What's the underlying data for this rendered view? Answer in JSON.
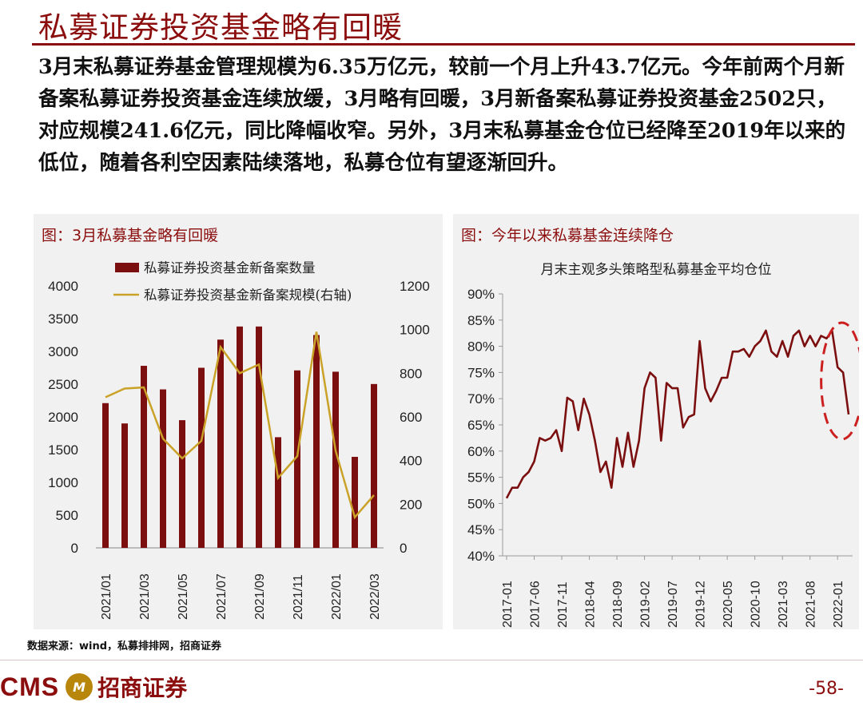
{
  "page": {
    "title": "私募证券投资基金略有回暖",
    "paragraph": "3月末私募证券基金管理规模为6.35万亿元，较前一个月上升43.7亿元。今年前两个月新备案私募证券投资基金连续放缓，3月略有回暖，3月新备案私募证券投资基金2502只，对应规模241.6亿元，同比降幅收窄。另外，3月末私募基金仓位已经降至2019年以来的低位，随着各利空因素陆续落地，私募仓位有望逐渐回升。",
    "source": "数据来源：wind，私募排排网，招商证券",
    "logo_cms": "CMS",
    "logo_badge": "M",
    "logo_cn": "招商证券",
    "page_number": "-58-"
  },
  "chart_data": [
    {
      "type": "bar",
      "panel_title": "图：3月私募基金略有回暖",
      "categories": [
        "2021/01",
        "2021/02",
        "2021/03",
        "2021/04",
        "2021/05",
        "2021/06",
        "2021/07",
        "2021/08",
        "2021/09",
        "2021/10",
        "2021/11",
        "2021/12",
        "2022/01",
        "2022/02",
        "2022/03"
      ],
      "x_tick_labels": [
        "2021/01",
        "",
        "2021/03",
        "",
        "2021/05",
        "",
        "2021/07",
        "",
        "2021/09",
        "",
        "2021/11",
        "",
        "2022/01",
        "",
        "2022/03"
      ],
      "series": [
        {
          "name": "私募证券投资基金新备案数量",
          "type": "bar",
          "axis": "left",
          "color": "#7b0f0f",
          "values": [
            2210,
            1900,
            2780,
            2420,
            1950,
            2750,
            3180,
            3380,
            3380,
            1690,
            2710,
            3250,
            2690,
            1390,
            2502
          ]
        },
        {
          "name": "私募证券投资基金新备案规模(右轴)",
          "type": "line",
          "axis": "right",
          "color": "#c9a227",
          "values": [
            690,
            730,
            735,
            500,
            410,
            490,
            920,
            800,
            840,
            320,
            420,
            990,
            445,
            140,
            241.6
          ]
        }
      ],
      "y_left": {
        "min": 0,
        "max": 4000,
        "ticks": [
          0,
          500,
          1000,
          1500,
          2000,
          2500,
          3000,
          3500,
          4000
        ]
      },
      "y_right": {
        "min": 0,
        "max": 1200,
        "ticks": [
          0,
          200,
          400,
          600,
          800,
          1000,
          1200
        ]
      },
      "legend": "top"
    },
    {
      "type": "line",
      "panel_title": "图：今年以来私募基金连续降仓",
      "title": "月末主观多头策略型私募基金平均仓位",
      "series_color": "#7b0f0f",
      "highlight_color": "#cc1f1f",
      "x_tick_labels": [
        "2017-01",
        "2017-06",
        "2017-11",
        "2018-04",
        "2018-09",
        "2019-02",
        "2019-07",
        "2019-12",
        "2020-05",
        "2020-10",
        "2021-03",
        "2021-08",
        "2022-01"
      ],
      "y": {
        "min": 40,
        "max": 90,
        "ticks": [
          "40%",
          "45%",
          "50%",
          "55%",
          "60%",
          "65%",
          "70%",
          "75%",
          "80%",
          "85%",
          "90%"
        ]
      },
      "values": [
        51.0,
        53.0,
        53.0,
        55.0,
        56.0,
        58.0,
        62.5,
        62.0,
        62.5,
        64.0,
        60.0,
        70.2,
        69.5,
        64.0,
        70.0,
        67.0,
        62.0,
        56.0,
        58.0,
        53.0,
        62.5,
        57.0,
        63.5,
        57.0,
        62.0,
        72.0,
        75.0,
        74.0,
        62.0,
        73.0,
        72.0,
        72.0,
        64.5,
        66.5,
        67.0,
        81.0,
        72.0,
        69.5,
        71.5,
        74.0,
        74.0,
        79.0,
        79.0,
        79.5,
        78.0,
        80.0,
        81.0,
        83.0,
        79.0,
        78.0,
        81.0,
        78.0,
        82.0,
        83.0,
        80.0,
        82.0,
        80.0,
        82.0,
        81.5,
        83.0,
        76.0,
        75.0,
        67.0
      ],
      "annotation": "dashed ellipse around 2021-12 to 2022-03"
    }
  ]
}
